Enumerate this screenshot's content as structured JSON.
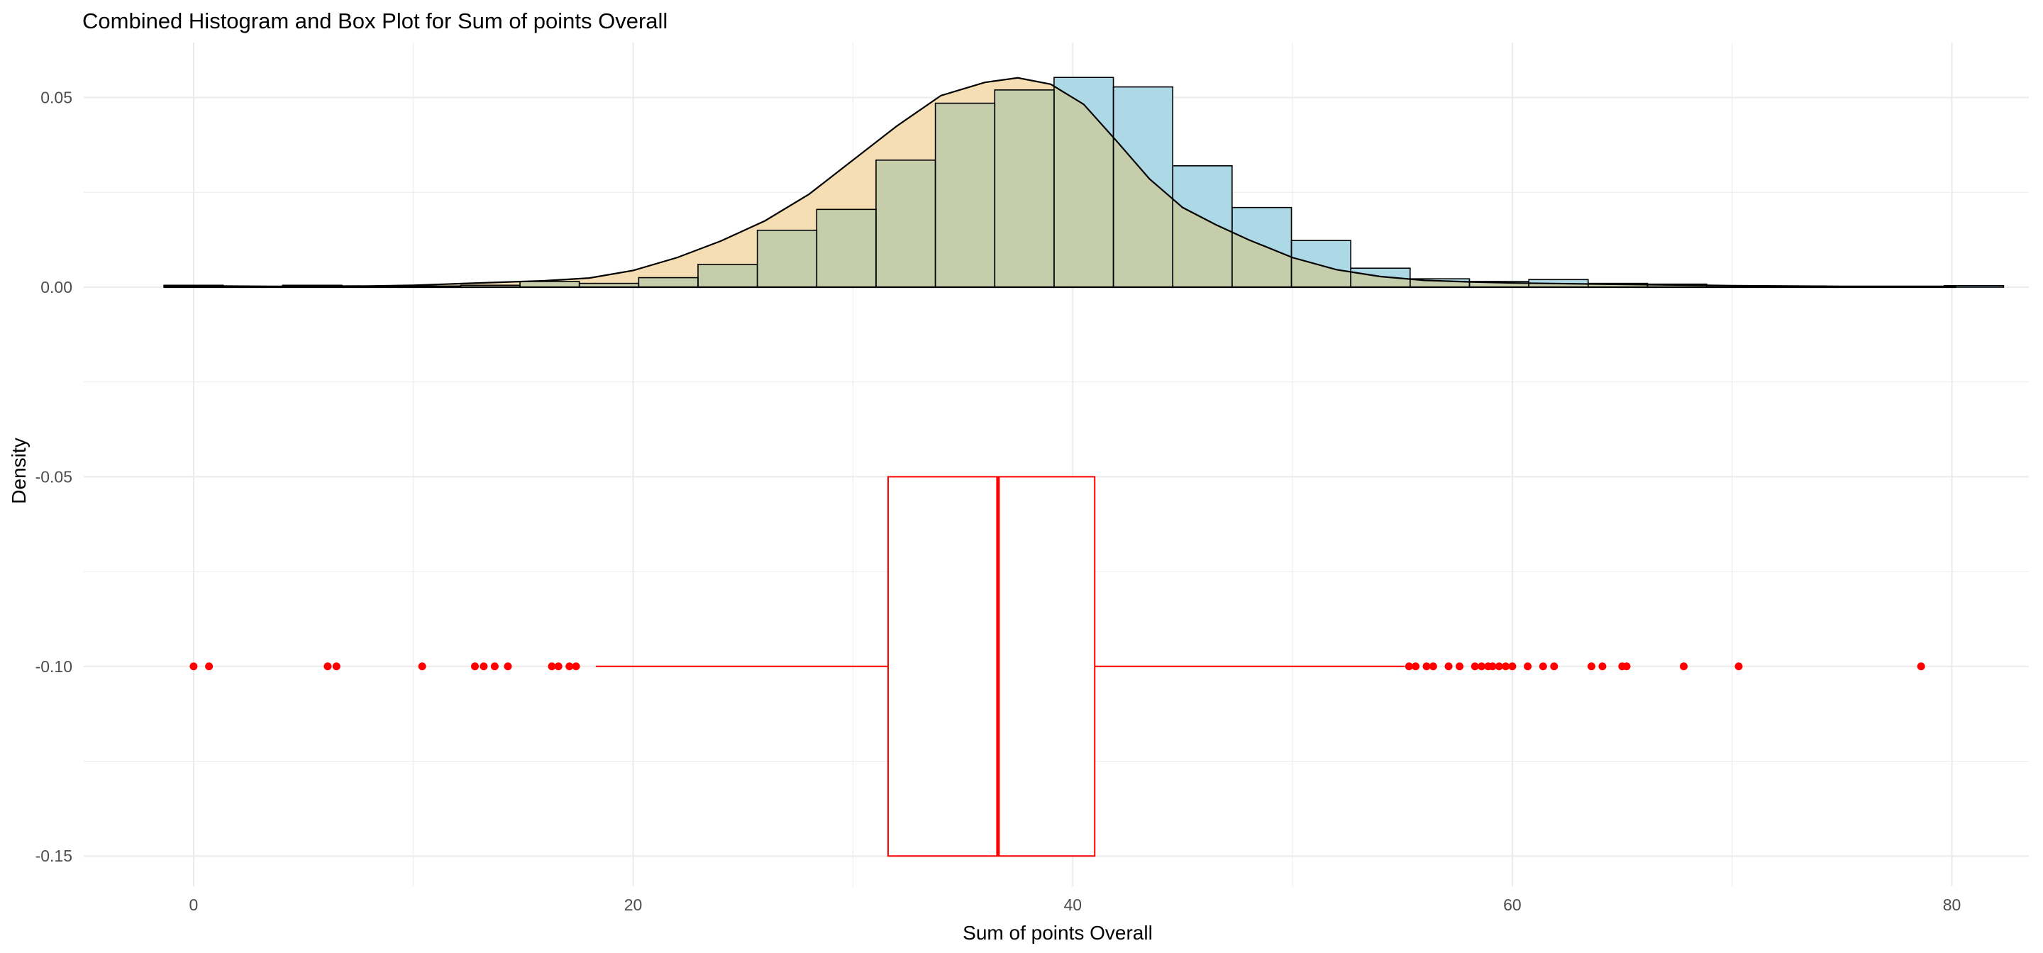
{
  "chart_data": {
    "type": "histogram+boxplot",
    "title": "Combined Histogram and Box Plot for Sum of points Overall",
    "xlabel": "Sum of points Overall",
    "ylabel": "Density",
    "xlim": [
      -5,
      83.5
    ],
    "ylim": [
      -0.158,
      0.0645
    ],
    "x_ticks": [
      0,
      20,
      40,
      60,
      80
    ],
    "y_ticks": [
      {
        "value": 0.05,
        "label": "0.05"
      },
      {
        "value": 0.0,
        "label": "0.00"
      },
      {
        "value": -0.05,
        "label": "-0.05"
      },
      {
        "value": -0.1,
        "label": "-0.10"
      },
      {
        "value": -0.15,
        "label": "-0.15"
      }
    ],
    "grid": true,
    "histogram": {
      "bin_width": 2.7,
      "bin_start": -1.35,
      "density": [
        0.0005,
        0.0002,
        0.0005,
        0.0003,
        0.0003,
        0.0005,
        0.0015,
        0.001,
        0.0025,
        0.006,
        0.015,
        0.0205,
        0.0335,
        0.0485,
        0.052,
        0.0553,
        0.0528,
        0.032,
        0.021,
        0.0123,
        0.005,
        0.0022,
        0.0015,
        0.002,
        0.001,
        0.0008,
        0.0004,
        0.0003,
        0.0001,
        0.0002,
        0.0004
      ]
    },
    "density_curve": {
      "x": [
        -1.35,
        4,
        8,
        10,
        12,
        14,
        16,
        18,
        20,
        22,
        24,
        26,
        28,
        30,
        32,
        34,
        36,
        37.5,
        39,
        40.5,
        42,
        43.5,
        45,
        46.5,
        48,
        50,
        52,
        54,
        56,
        58,
        60,
        64,
        70,
        75,
        80.2
      ],
      "y": [
        0.0004,
        0.0002,
        0.0003,
        0.0005,
        0.0009,
        0.0013,
        0.0017,
        0.0024,
        0.0044,
        0.0078,
        0.0122,
        0.0175,
        0.0245,
        0.0335,
        0.0425,
        0.0505,
        0.054,
        0.0552,
        0.0535,
        0.0482,
        0.0385,
        0.0285,
        0.021,
        0.0165,
        0.0125,
        0.0078,
        0.0046,
        0.0028,
        0.0018,
        0.0014,
        0.0011,
        0.0008,
        0.0004,
        0.0002,
        0.0002
      ]
    },
    "boxplot": {
      "y_center": -0.1,
      "box_bottom": -0.15,
      "box_top": -0.05,
      "whisker_low": 18.3,
      "q1": 31.6,
      "median": 36.6,
      "q3": 41.0,
      "whisker_high": 55.1,
      "outliers": [
        0.0,
        0.7,
        6.1,
        6.5,
        10.4,
        12.8,
        13.2,
        13.7,
        14.3,
        16.3,
        16.6,
        17.1,
        17.4,
        55.3,
        55.6,
        56.1,
        56.4,
        57.1,
        57.6,
        58.3,
        58.6,
        58.9,
        59.1,
        59.4,
        59.7,
        60.0,
        60.7,
        61.4,
        61.9,
        63.6,
        64.1,
        65.0,
        65.2,
        67.8,
        70.3,
        78.6
      ]
    },
    "colors": {
      "hist_fill": "#ADD8E6",
      "density_fill": "#F5DEB3",
      "overlap_fill": "#C5CDAA",
      "outline": "#000000",
      "box": "#FF0000",
      "grid": "#EBEBEB"
    }
  }
}
